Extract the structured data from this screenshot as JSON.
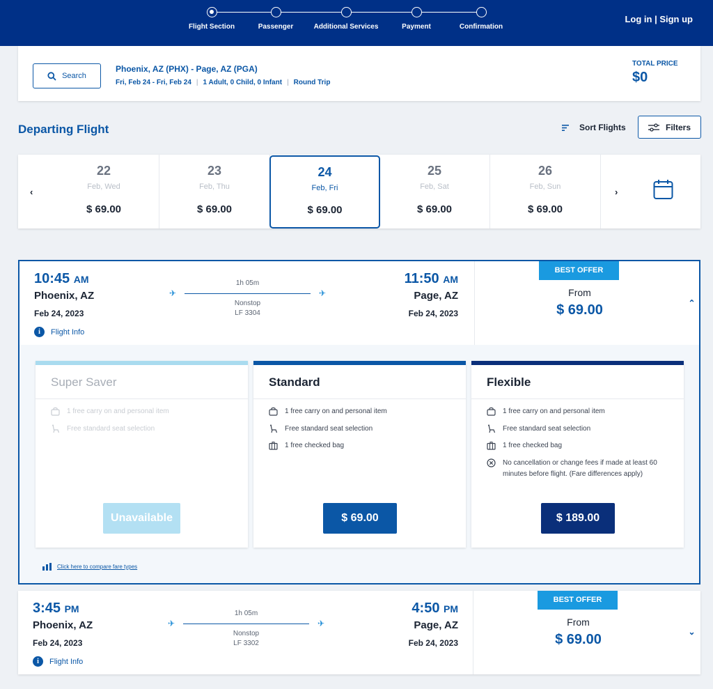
{
  "header": {
    "steps": [
      "Flight Section",
      "Passenger",
      "Additional Services",
      "Payment",
      "Confirmation"
    ],
    "login_label": "Log in",
    "signup_label": "Sign up",
    "login_sep": "|"
  },
  "search": {
    "button_label": "Search",
    "route": "Phoenix, AZ (PHX) - Page, AZ (PGA)",
    "dates": "Fri, Feb 24 - Fri, Feb 24",
    "passengers": "1 Adult, 0 Child, 0 Infant",
    "trip_type": "Round Trip",
    "sep": "|",
    "total_label": "TOTAL PRICE",
    "total_value": "$0"
  },
  "departing": {
    "title": "Departing Flight",
    "sort_label": "Sort Flights",
    "filters_label": "Filters"
  },
  "dates": [
    {
      "day": "22",
      "weekday": "Feb, Wed",
      "price": "$ 69.00"
    },
    {
      "day": "23",
      "weekday": "Feb, Thu",
      "price": "$ 69.00"
    },
    {
      "day": "24",
      "weekday": "Feb, Fri",
      "price": "$ 69.00"
    },
    {
      "day": "25",
      "weekday": "Feb, Sat",
      "price": "$ 69.00"
    },
    {
      "day": "26",
      "weekday": "Feb, Sun",
      "price": "$ 69.00"
    }
  ],
  "flights": [
    {
      "dep_time": "10:45",
      "dep_ampm": "AM",
      "dep_city": "Phoenix, AZ",
      "dep_date": "Feb 24, 2023",
      "arr_time": "11:50",
      "arr_ampm": "AM",
      "arr_city": "Page, AZ",
      "arr_date": "Feb 24, 2023",
      "duration": "1h 05m",
      "stops": "Nonstop",
      "flight_no": "LF 3304",
      "info_label": "Flight Info",
      "badge": "BEST OFFER",
      "from_label": "From",
      "price": "$ 69.00"
    },
    {
      "dep_time": "3:45",
      "dep_ampm": "PM",
      "dep_city": "Phoenix, AZ",
      "dep_date": "Feb 24, 2023",
      "arr_time": "4:50",
      "arr_ampm": "PM",
      "arr_city": "Page, AZ",
      "arr_date": "Feb 24, 2023",
      "duration": "1h 05m",
      "stops": "Nonstop",
      "flight_no": "LF 3302",
      "info_label": "Flight Info",
      "badge": "BEST OFFER",
      "from_label": "From",
      "price": "$ 69.00"
    }
  ],
  "fares": [
    {
      "name": "Super Saver",
      "button": "Unavailable",
      "cap_color": "#a9dbef",
      "button_color": "#b3e0f3",
      "features": [
        "1 free carry on and personal item",
        "Free standard seat selection"
      ]
    },
    {
      "name": "Standard",
      "button": "$ 69.00",
      "cap_color": "#0b57a6",
      "button_color": "#0b57a6",
      "features": [
        "1 free carry on and personal item",
        "Free standard seat selection",
        "1 free checked bag"
      ]
    },
    {
      "name": "Flexible",
      "button": "$ 189.00",
      "cap_color": "#0a2f7a",
      "button_color": "#0a2f7a",
      "features": [
        "1 free carry on and personal item",
        "Free standard seat selection",
        "1 free checked bag",
        "No cancellation or change fees if made at least 60 minutes before flight. (Fare differences apply)"
      ]
    }
  ],
  "compare_label": "Click here to compare fare types",
  "colors": {
    "brand": "#003087",
    "accent": "#0b57a6",
    "badge": "#1a9ae0"
  },
  "icons": [
    "search-icon",
    "sort-icon",
    "filters-icon",
    "calendar-icon",
    "plane-icon",
    "info-icon",
    "bag-icon",
    "seat-icon",
    "luggage-icon",
    "no-fee-icon",
    "chart-icon",
    "chevron-up-icon",
    "chevron-down-icon"
  ]
}
